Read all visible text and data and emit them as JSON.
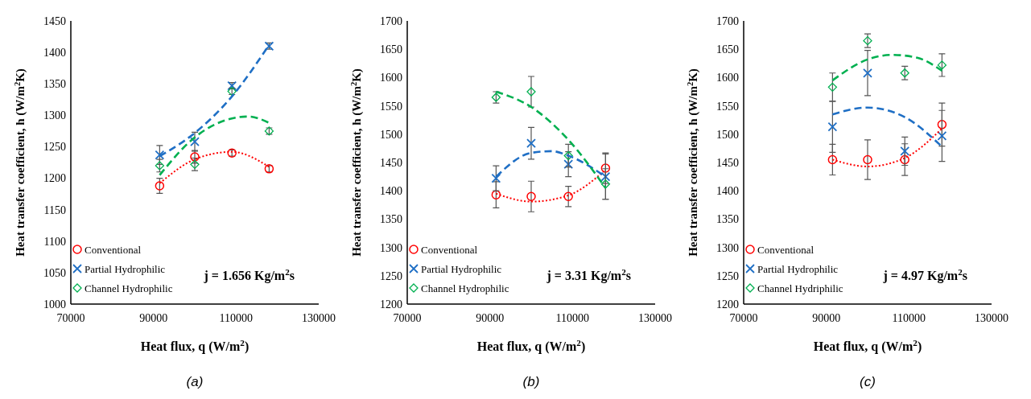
{
  "chart_data": [
    {
      "type": "scatter",
      "xlabel": "Heat flux, q (W/m$^{2}$)",
      "ylabel": "Heat transfer coefficient, h (W/m$^{2}$K)",
      "xlim": [
        70000,
        130000
      ],
      "xticks": [
        70000,
        90000,
        110000,
        130000
      ],
      "ylim": [
        1000,
        1450
      ],
      "yticks": [
        1000,
        1050,
        1100,
        1150,
        1200,
        1250,
        1300,
        1350,
        1400,
        1450
      ],
      "grid": false,
      "legend": "bottom left",
      "annotations": [
        "j = 1.656 Kg/m$^{2}$s",
        "(a)"
      ],
      "x": [
        91500,
        100000,
        109000,
        118000
      ],
      "series": [
        {
          "name": "Conventional",
          "color": "#ff0000",
          "marker": "circle",
          "values": [
            1188,
            1234,
            1240,
            1215
          ],
          "errors": [
            12,
            10,
            5,
            5
          ]
        },
        {
          "name": "Partial Hydrophilic",
          "color": "#1f6fc5",
          "marker": "cross",
          "values": [
            1237,
            1258,
            1347,
            1410
          ],
          "errors": [
            15,
            15,
            5,
            5
          ]
        },
        {
          "name": "Channel Hydrophilic",
          "color": "#00b050",
          "marker": "diamond",
          "values": [
            1220,
            1222,
            1338,
            1275
          ],
          "errors": [
            10,
            10,
            5,
            5
          ]
        },
        {
          "type": "line",
          "color": "#ff0000",
          "line_style": "dotted",
          "x": [
            91500,
            100000,
            109000,
            118000
          ],
          "values": [
            1192,
            1230,
            1242,
            1218
          ]
        },
        {
          "type": "line",
          "color": "#1f6fc5",
          "line_style": "dashed",
          "x": [
            91500,
            100000,
            109000,
            118000
          ],
          "values": [
            1235,
            1272,
            1330,
            1412
          ]
        },
        {
          "type": "line",
          "color": "#00b050",
          "line_style": "dashed",
          "x": [
            91500,
            100000,
            109000,
            113000,
            118000
          ],
          "values": [
            1205,
            1265,
            1295,
            1298,
            1288
          ]
        }
      ]
    },
    {
      "type": "scatter",
      "xlabel": "Heat flux, q (W/m$^{2}$)",
      "ylabel": "Heat transfer coefficient, h (W/m$^{2}$K)",
      "xlim": [
        70000,
        130000
      ],
      "xticks": [
        70000,
        90000,
        110000,
        130000
      ],
      "ylim": [
        1200,
        1700
      ],
      "yticks": [
        1200,
        1250,
        1300,
        1350,
        1400,
        1450,
        1500,
        1550,
        1600,
        1650,
        1700
      ],
      "grid": false,
      "legend": "bottom left",
      "annotations": [
        "j = 3.31 Kg/m$^{2}$s",
        "(b)"
      ],
      "x": [
        91500,
        100000,
        109000,
        118000
      ],
      "series": [
        {
          "name": "Conventional",
          "color": "#ff0000",
          "marker": "circle",
          "values": [
            1393,
            1390,
            1390,
            1440
          ],
          "errors": [
            23,
            27,
            18,
            27
          ]
        },
        {
          "name": "Partial Hydrophilic",
          "color": "#1f6fc5",
          "marker": "cross",
          "values": [
            1422,
            1484,
            1447,
            1425
          ],
          "errors": [
            22,
            28,
            22,
            40
          ]
        },
        {
          "name": "Channel Hydrophilic",
          "color": "#00b050",
          "marker": "diamond",
          "values": [
            1565,
            1575,
            1462,
            1412
          ],
          "errors": [
            10,
            27,
            20,
            27
          ]
        },
        {
          "type": "line",
          "color": "#ff0000",
          "line_style": "dotted",
          "x": [
            91500,
            100000,
            109000,
            118000
          ],
          "values": [
            1395,
            1381,
            1392,
            1437
          ]
        },
        {
          "type": "line",
          "color": "#1f6fc5",
          "line_style": "dashed",
          "x": [
            91500,
            100000,
            105000,
            109000,
            118000
          ],
          "values": [
            1425,
            1467,
            1470,
            1462,
            1425
          ]
        },
        {
          "type": "line",
          "color": "#00b050",
          "line_style": "dashed",
          "x": [
            91500,
            100000,
            109000,
            118000
          ],
          "values": [
            1575,
            1548,
            1490,
            1405
          ]
        }
      ]
    },
    {
      "type": "scatter",
      "xlabel": "Heat flux, q (W/m$^{2}$)",
      "ylabel": "Heat transfer coefficient, h (W/m$^{2}$K)",
      "xlim": [
        70000,
        130000
      ],
      "xticks": [
        70000,
        90000,
        110000,
        130000
      ],
      "ylim": [
        1200,
        1700
      ],
      "yticks": [
        1200,
        1250,
        1300,
        1350,
        1400,
        1450,
        1500,
        1550,
        1600,
        1650,
        1700
      ],
      "grid": false,
      "legend": "bottom left",
      "annotations": [
        "j = 4.97 Kg/m$^{2}$s",
        "(c)"
      ],
      "x": [
        91500,
        100000,
        109000,
        118000
      ],
      "series": [
        {
          "name": "Conventional",
          "color": "#ff0000",
          "marker": "circle",
          "values": [
            1455,
            1455,
            1455,
            1517
          ],
          "errors": [
            27,
            35,
            28,
            38
          ]
        },
        {
          "name": "Partial Hydrophilic",
          "color": "#1f6fc5",
          "marker": "cross",
          "values": [
            1513,
            1608,
            1470,
            1497
          ],
          "errors": [
            45,
            40,
            25,
            45
          ]
        },
        {
          "name": "Channel Hydriphilic",
          "color": "#00b050",
          "marker": "diamond",
          "values": [
            1583,
            1665,
            1608,
            1622
          ],
          "errors": [
            25,
            12,
            12,
            20
          ]
        },
        {
          "type": "line",
          "color": "#ff0000",
          "line_style": "dotted",
          "x": [
            91500,
            100000,
            109000,
            118000
          ],
          "values": [
            1455,
            1443,
            1458,
            1510
          ]
        },
        {
          "type": "line",
          "color": "#1f6fc5",
          "line_style": "dashed",
          "x": [
            91500,
            100000,
            109000,
            118000
          ],
          "values": [
            1535,
            1547,
            1530,
            1478
          ]
        },
        {
          "type": "line",
          "color": "#00b050",
          "line_style": "dashed",
          "x": [
            91500,
            100000,
            106000,
            112000,
            118000
          ],
          "values": [
            1595,
            1632,
            1640,
            1635,
            1612
          ]
        }
      ]
    }
  ]
}
